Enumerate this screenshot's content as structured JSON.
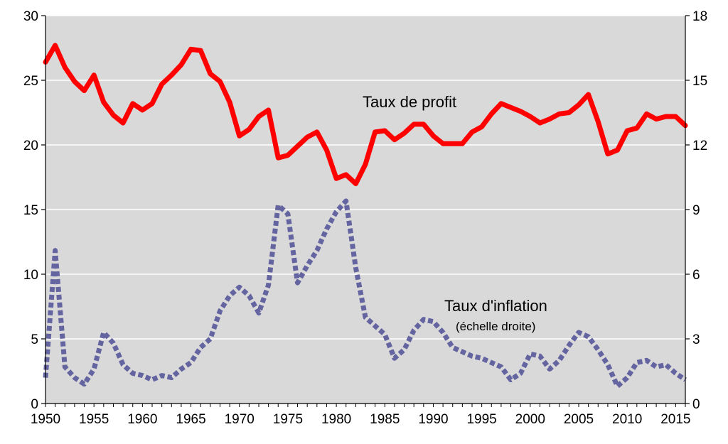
{
  "chart_data": {
    "type": "line",
    "title": "",
    "xlabel": "",
    "ylabel": "",
    "y2label": "",
    "grid": true,
    "legend": "none",
    "background_color": "#d9d9d9",
    "x_range": [
      1950,
      2016
    ],
    "ylim_left": [
      0,
      30
    ],
    "ylim_right": [
      0,
      18
    ],
    "x_ticks": [
      "1950",
      "1955",
      "1960",
      "1965",
      "1970",
      "1975",
      "1980",
      "1985",
      "1990",
      "1995",
      "2000",
      "2005",
      "2010",
      "2015"
    ],
    "y_ticks_left": [
      "0",
      "5",
      "10",
      "15",
      "20",
      "25",
      "30"
    ],
    "y_ticks_right": [
      "0",
      "3",
      "6",
      "9",
      "12",
      "15",
      "18"
    ],
    "annotations": {
      "profit": "Taux de profit",
      "inflation": "Taux d'inflation",
      "inflation_note": "(échelle droite)"
    },
    "x": [
      1950,
      1951,
      1952,
      1953,
      1954,
      1955,
      1956,
      1957,
      1958,
      1959,
      1960,
      1961,
      1962,
      1963,
      1964,
      1965,
      1966,
      1967,
      1968,
      1969,
      1970,
      1971,
      1972,
      1973,
      1974,
      1975,
      1976,
      1977,
      1978,
      1979,
      1980,
      1981,
      1982,
      1983,
      1984,
      1985,
      1986,
      1987,
      1988,
      1989,
      1990,
      1991,
      1992,
      1993,
      1994,
      1995,
      1996,
      1997,
      1998,
      1999,
      2000,
      2001,
      2002,
      2003,
      2004,
      2005,
      2006,
      2007,
      2008,
      2009,
      2010,
      2011,
      2012,
      2013,
      2014,
      2015,
      2016
    ],
    "series": [
      {
        "name": "Taux de profit",
        "axis": "left",
        "color": "#ff0000",
        "style": "solid",
        "values": [
          26.4,
          27.7,
          26.0,
          24.9,
          24.2,
          25.4,
          23.3,
          22.3,
          21.7,
          23.2,
          22.7,
          23.2,
          24.7,
          25.4,
          26.2,
          27.4,
          27.3,
          25.5,
          24.9,
          23.3,
          20.7,
          21.2,
          22.2,
          22.7,
          19.0,
          19.2,
          19.9,
          20.6,
          21.0,
          19.6,
          17.4,
          17.7,
          17.0,
          18.5,
          21.0,
          21.1,
          20.4,
          20.9,
          21.6,
          21.6,
          20.7,
          20.1,
          20.1,
          20.1,
          21.0,
          21.4,
          22.4,
          23.2,
          22.9,
          22.6,
          22.2,
          21.7,
          22.0,
          22.4,
          22.5,
          23.1,
          23.9,
          21.8,
          19.3,
          19.6,
          21.1,
          21.3,
          22.4,
          22.0,
          22.2,
          22.2,
          21.5
        ]
      },
      {
        "name": "Taux d'inflation",
        "axis": "right",
        "color": "#6464a0",
        "style": "dotted",
        "values": [
          1.2,
          7.1,
          1.7,
          1.2,
          0.9,
          1.6,
          3.3,
          2.8,
          1.8,
          1.4,
          1.3,
          1.1,
          1.3,
          1.2,
          1.6,
          1.9,
          2.6,
          3.0,
          4.3,
          5.0,
          5.4,
          5.0,
          4.2,
          5.5,
          9.2,
          8.8,
          5.6,
          6.4,
          7.1,
          8.1,
          8.9,
          9.4,
          6.3,
          4.0,
          3.6,
          3.2,
          2.1,
          2.5,
          3.4,
          3.9,
          3.8,
          3.3,
          2.6,
          2.4,
          2.2,
          2.1,
          1.9,
          1.7,
          1.1,
          1.4,
          2.3,
          2.2,
          1.6,
          2.0,
          2.7,
          3.3,
          3.1,
          2.5,
          1.8,
          0.8,
          1.2,
          1.9,
          2.0,
          1.7,
          1.8,
          1.4,
          1.1
        ]
      }
    ]
  }
}
